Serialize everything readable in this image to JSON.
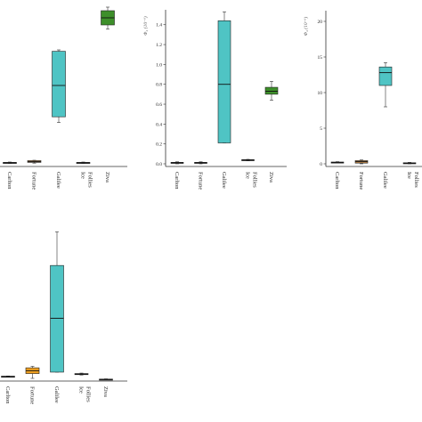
{
  "chart_data": [
    {
      "type": "box",
      "panel": "top-left",
      "categories": [
        "Carlton",
        "Fortune",
        "Galilee",
        "Ice Follies",
        "Ziva"
      ],
      "ylim": [
        0,
        2.2
      ],
      "show_y_axis": false,
      "boxes": [
        {
          "min": 0.005,
          "q1": 0.01,
          "median": 0.015,
          "q3": 0.02,
          "max": 0.025,
          "color": "#2e2e2e"
        },
        {
          "min": 0.01,
          "q1": 0.02,
          "median": 0.03,
          "q3": 0.045,
          "max": 0.05,
          "color": "#c08a4c"
        },
        {
          "min": 0.58,
          "q1": 0.66,
          "median": 1.1,
          "q3": 1.58,
          "max": 1.6,
          "color": "#4fc4c4"
        },
        {
          "min": 0.005,
          "q1": 0.01,
          "median": 0.015,
          "q3": 0.02,
          "max": 0.025,
          "color": "#2e2e2e"
        },
        {
          "min": 1.89,
          "q1": 1.95,
          "median": 2.05,
          "q3": 2.15,
          "max": 2.2,
          "color": "#3d8f2a"
        }
      ]
    },
    {
      "type": "box",
      "panel": "top-middle",
      "categories": [
        "Carlton",
        "Fortune",
        "Galilee",
        "Ice Follies",
        "Ziva"
      ],
      "ylabel": "Φ₄ (10⁻⁶)",
      "yticks": [
        "0.0",
        "0.2",
        "0.4",
        "0.6",
        "0.8",
        "1.0",
        "1.2",
        "1.4"
      ],
      "ylim": [
        0,
        1.55
      ],
      "boxes": [
        {
          "min": 0.0,
          "q1": 0.005,
          "median": 0.01,
          "q3": 0.015,
          "max": 0.02,
          "color": "#2e2e2e"
        },
        {
          "min": 0.0,
          "q1": 0.005,
          "median": 0.01,
          "q3": 0.015,
          "max": 0.02,
          "color": "#2e2e2e"
        },
        {
          "min": 0.21,
          "q1": 0.21,
          "median": 0.8,
          "q3": 1.44,
          "max": 1.53,
          "color": "#4fc4c4"
        },
        {
          "min": 0.03,
          "q1": 0.035,
          "median": 0.038,
          "q3": 0.042,
          "max": 0.045,
          "color": "#2e2e2e"
        },
        {
          "min": 0.64,
          "q1": 0.7,
          "median": 0.73,
          "q3": 0.77,
          "max": 0.83,
          "color": "#3d8f2a"
        }
      ]
    },
    {
      "type": "box",
      "panel": "top-right",
      "categories": [
        "Carlton",
        "Fortune",
        "Galilee",
        "Ice Follies"
      ],
      "ylabel": "Φ₄ (10⁻⁶)",
      "yticks": [
        "0",
        "5",
        "10",
        "15",
        "20"
      ],
      "ylim": [
        0,
        21.5
      ],
      "boxes": [
        {
          "min": 0.1,
          "q1": 0.15,
          "median": 0.2,
          "q3": 0.25,
          "max": 0.3,
          "color": "#2e2e2e"
        },
        {
          "min": 0.0,
          "q1": 0.1,
          "median": 0.3,
          "q3": 0.45,
          "max": 0.55,
          "color": "#c08a4c"
        },
        {
          "min": 8.0,
          "q1": 11.0,
          "median": 12.8,
          "q3": 13.6,
          "max": 14.2,
          "color": "#4fc4c4"
        },
        {
          "min": 0.0,
          "q1": 0.05,
          "median": 0.1,
          "q3": 0.15,
          "max": 0.2,
          "color": "#2e2e2e"
        }
      ]
    },
    {
      "type": "box",
      "panel": "bottom-left",
      "categories": [
        "Carlton",
        "Fortune",
        "Galilee",
        "Ice Follies",
        "Ziva"
      ],
      "ylim": [
        0,
        3.15
      ],
      "show_y_axis": false,
      "boxes": [
        {
          "min": 0.03,
          "q1": 0.035,
          "median": 0.04,
          "q3": 0.045,
          "max": 0.05,
          "color": "#2e2e2e"
        },
        {
          "min": 0.0,
          "q1": 0.1,
          "median": 0.16,
          "q3": 0.22,
          "max": 0.25,
          "color": "#f0a020"
        },
        {
          "min": 0.13,
          "q1": 0.13,
          "median": 1.25,
          "q3": 2.35,
          "max": 3.05,
          "color": "#4fc4c4"
        },
        {
          "min": 0.07,
          "q1": 0.08,
          "median": 0.09,
          "q3": 0.1,
          "max": 0.11,
          "color": "#2e2e2e"
        },
        {
          "min": -0.03,
          "q1": -0.025,
          "median": -0.02,
          "q3": -0.015,
          "max": -0.01,
          "color": "#2e2e2e"
        }
      ]
    }
  ]
}
